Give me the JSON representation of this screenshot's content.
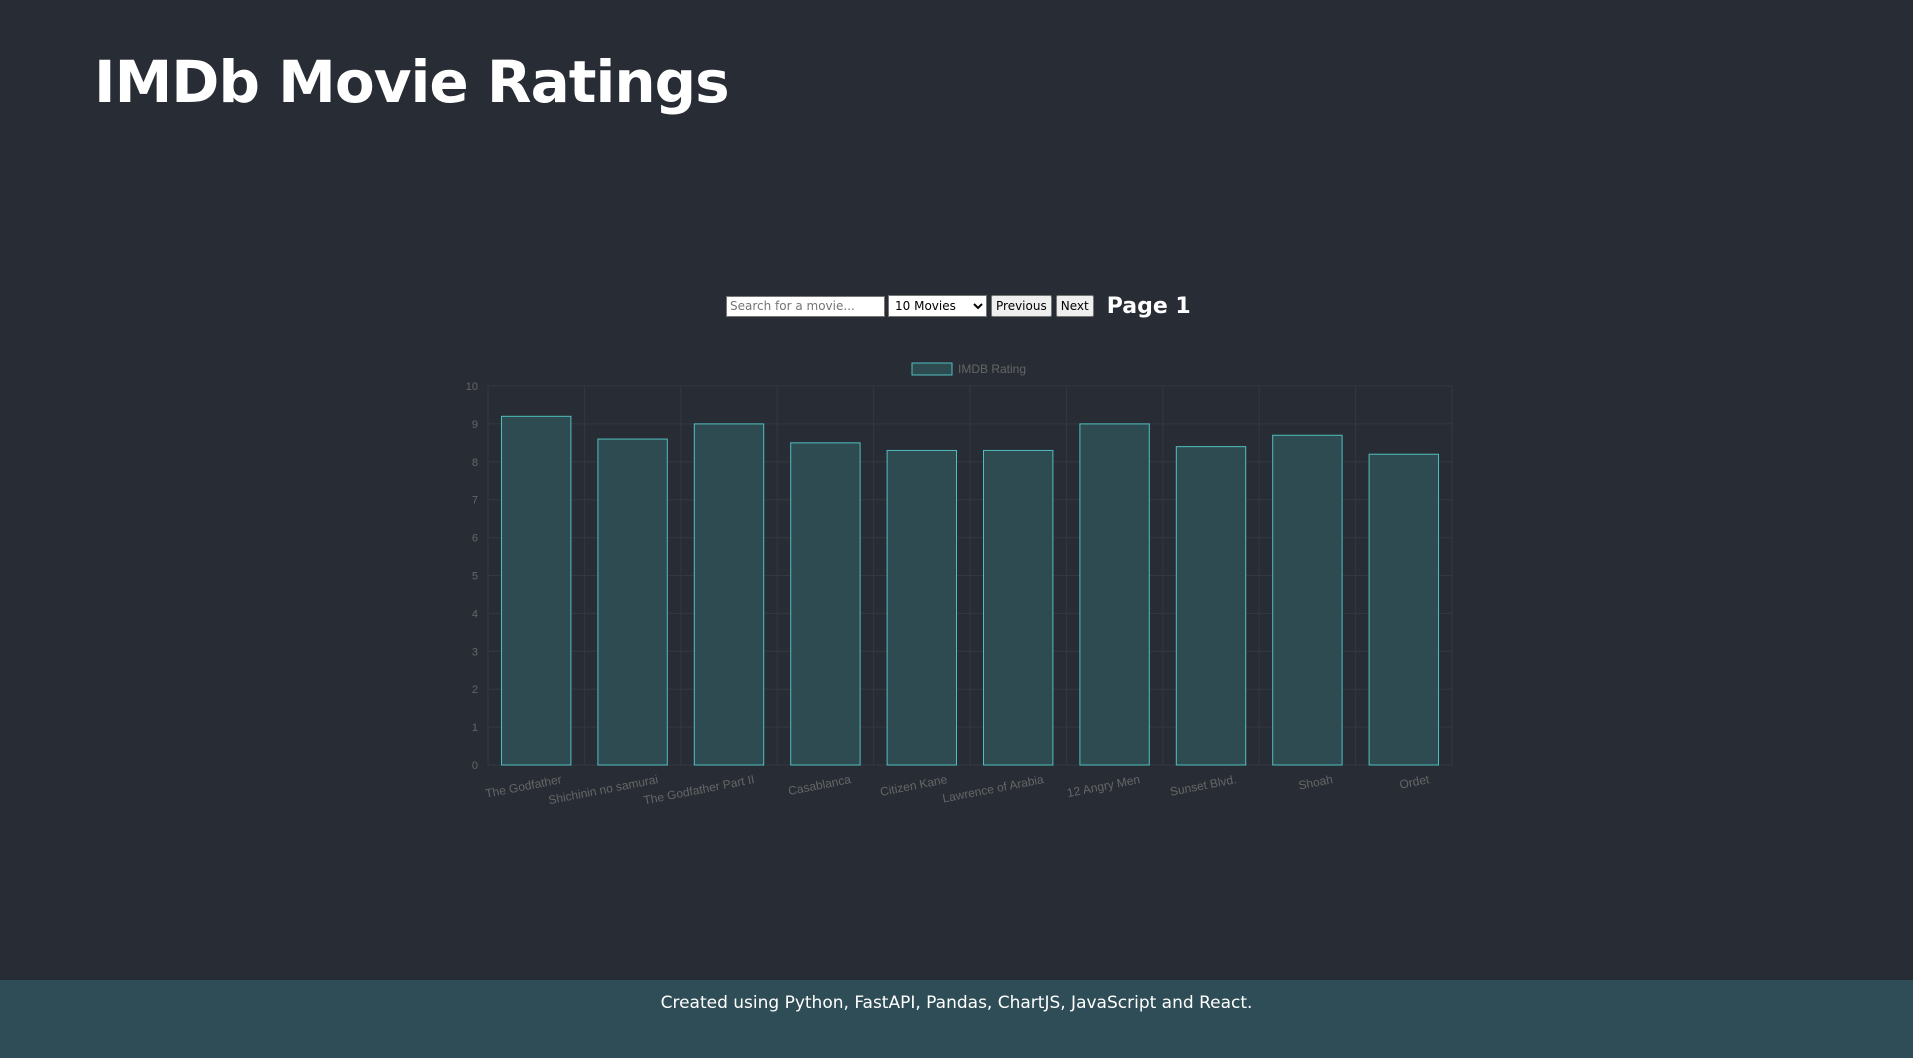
{
  "header": {
    "title": "IMDb Movie Ratings"
  },
  "controls": {
    "search_placeholder": "Search for a movie...",
    "search_value": "",
    "page_size_selected": "10 Movies",
    "previous_label": "Previous",
    "next_label": "Next",
    "page_label": "Page 1"
  },
  "colors": {
    "background": "#282c34",
    "bar_fill": "#2f4b52",
    "bar_border": "#4fbfbf",
    "axis_text": "#666666",
    "grid": "#34383f",
    "footer_background": "#2f4d56"
  },
  "chart_data": {
    "type": "bar",
    "categories": [
      "The Godfather",
      "Shichinin no samurai",
      "The Godfather Part II",
      "Casablanca",
      "Citizen Kane",
      "Lawrence of Arabia",
      "12 Angry Men",
      "Sunset Blvd.",
      "Shoah",
      "Ordet"
    ],
    "series": [
      {
        "name": "IMDB Rating",
        "values": [
          9.2,
          8.6,
          9.0,
          8.5,
          8.3,
          8.3,
          9.0,
          8.4,
          8.7,
          8.2
        ]
      }
    ],
    "yticks": [
      0,
      1,
      2,
      3,
      4,
      5,
      6,
      7,
      8,
      9,
      10
    ],
    "ylim": [
      0,
      10
    ],
    "legend": "top-center",
    "grid": true
  },
  "footer": {
    "text": "Created using Python, FastAPI, Pandas, ChartJS, JavaScript and React."
  }
}
